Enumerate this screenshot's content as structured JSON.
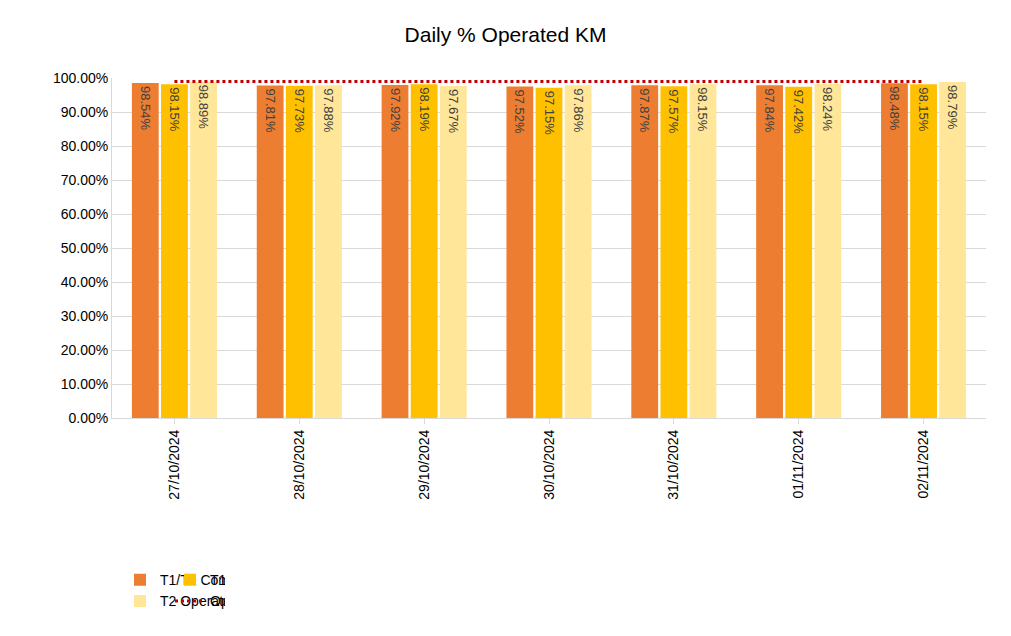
{
  "chart_data": {
    "type": "bar",
    "title": "Daily % Operated KM",
    "categories": [
      "27/10/2024",
      "28/10/2024",
      "29/10/2024",
      "30/10/2024",
      "31/10/2024",
      "01/11/2024",
      "02/11/2024"
    ],
    "series": [
      {
        "name": "T1/T2 Combined Operated KM %",
        "color": "#ED7D31",
        "type": "bar",
        "values": [
          98.54,
          97.81,
          97.92,
          97.52,
          97.87,
          97.84,
          98.48
        ],
        "value_labels": [
          "98.54%",
          "97.81%",
          "97.92%",
          "97.52%",
          "97.87%",
          "97.84%",
          "98.48%"
        ]
      },
      {
        "name": "T1 Operated KM %",
        "color": "#FFC000",
        "type": "bar",
        "values": [
          98.15,
          97.73,
          98.19,
          97.15,
          97.57,
          97.42,
          98.15
        ],
        "value_labels": [
          "98.15%",
          "97.73%",
          "98.19%",
          "97.15%",
          "97.57%",
          "97.42%",
          "98.15%"
        ]
      },
      {
        "name": "T2 Operated KM %",
        "color": "#FFE699",
        "type": "bar",
        "values": [
          98.89,
          97.88,
          97.67,
          97.86,
          98.15,
          98.24,
          98.79
        ],
        "value_labels": [
          "98.89%",
          "97.88%",
          "97.67%",
          "97.86%",
          "98.15%",
          "98.24%",
          "98.79%"
        ]
      },
      {
        "name": "Operated KM Target",
        "color": "#C00000",
        "type": "line",
        "line_style": "dotted",
        "values": [
          99,
          99,
          99,
          99,
          99,
          99,
          99
        ]
      }
    ],
    "ylim": [
      0,
      100
    ],
    "yticks": [
      {
        "value": 0,
        "label": "0.00%"
      },
      {
        "value": 10,
        "label": "10.00%"
      },
      {
        "value": 20,
        "label": "20.00%"
      },
      {
        "value": 30,
        "label": "30.00%"
      },
      {
        "value": 40,
        "label": "40.00%"
      },
      {
        "value": 50,
        "label": "50.00%"
      },
      {
        "value": 60,
        "label": "60.00%"
      },
      {
        "value": 70,
        "label": "70.00%"
      },
      {
        "value": 80,
        "label": "80.00%"
      },
      {
        "value": 90,
        "label": "90.00%"
      },
      {
        "value": 100,
        "label": "100.00%"
      }
    ],
    "grid": true,
    "legend": "bottom",
    "data_labels": true
  }
}
